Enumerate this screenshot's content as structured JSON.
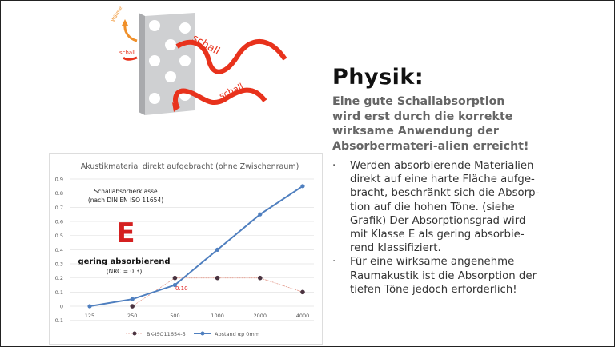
{
  "illustration": {
    "labels": [
      "Wärme",
      "schall",
      "schall",
      "schall"
    ],
    "colors": {
      "wall": "#c8c9cb",
      "wave": "#e8321c",
      "heat": "#f0902a"
    }
  },
  "heading": "Physik:",
  "lead": "Eine gute Schallabsorption wird erst durch die korrekte wirksame Anwendung der Absorbermateri-alien erreicht!",
  "bullets": [
    {
      "marker": "·",
      "text": "Werden absorbierende Materialien direkt auf eine harte Fläche aufge-bracht, beschränkt sich die Absorp-tion auf die hohen Töne.  (siehe Grafik) Der Absorptionsgrad wird mit Klasse E als gering absorbie-rend klassifiziert."
    },
    {
      "marker": "·",
      "text": "Für eine wirksame angenehme Raumakustik ist die Absorption der tiefen Töne jedoch erforderlich!"
    }
  ],
  "chart_data": {
    "type": "line",
    "title": "Akustikmaterial direkt aufgebracht (ohne Zwischenraum)",
    "categories": [
      "125",
      "250",
      "500",
      "1000",
      "2000",
      "4000"
    ],
    "ylim": [
      -0.1,
      0.9
    ],
    "yticks": [
      "-0.1",
      "0",
      "0.1",
      "0.2",
      "0.3",
      "0.4",
      "0.5",
      "0.6",
      "0.7",
      "0.8",
      "0.9"
    ],
    "grid": true,
    "legend": "bottom",
    "series": [
      {
        "name": "BK-ISO11654-5",
        "values": [
          null,
          0,
          0.2,
          0.2,
          0.2,
          0.1
        ],
        "color": "#4a3340",
        "line_color": "#e39a8c"
      },
      {
        "name": "Abstand  αp 0mm",
        "values": [
          0,
          0.05,
          0.15,
          0.4,
          0.65,
          0.85
        ],
        "color": "#4f7fbf"
      }
    ],
    "annotations": {
      "class_title": "Schallabsorberklasse",
      "class_norm": "(nach DIN EN ISO 11654)",
      "class_letter": "E",
      "class_desc": "gering absorbierend",
      "nrc": "(NRC = 0.3)",
      "point_label": "0.10"
    },
    "colors": {
      "class_letter": "#d42020",
      "point_label": "#e02020"
    }
  }
}
